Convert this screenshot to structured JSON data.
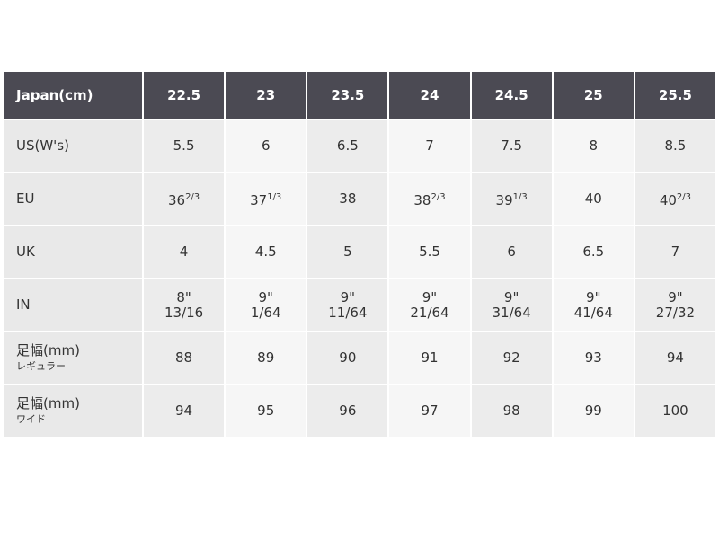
{
  "table": {
    "header": [
      "Japan(cm)",
      "22.5",
      "23",
      "23.5",
      "24",
      "24.5",
      "25",
      "25.5"
    ],
    "rows": [
      {
        "label": {
          "text": "US(W's)"
        },
        "cells": [
          {
            "text": "5.5"
          },
          {
            "text": "6"
          },
          {
            "text": "6.5"
          },
          {
            "text": "7"
          },
          {
            "text": "7.5"
          },
          {
            "text": "8"
          },
          {
            "text": "8.5"
          }
        ]
      },
      {
        "label": {
          "text": "EU"
        },
        "cells": [
          {
            "text": "36",
            "sup": "2/3"
          },
          {
            "text": "37",
            "sup": "1/3"
          },
          {
            "text": "38"
          },
          {
            "text": "38",
            "sup": "2/3"
          },
          {
            "text": "39",
            "sup": "1/3"
          },
          {
            "text": "40"
          },
          {
            "text": "40",
            "sup": "2/3"
          }
        ]
      },
      {
        "label": {
          "text": "UK"
        },
        "cells": [
          {
            "text": "4"
          },
          {
            "text": "4.5"
          },
          {
            "text": "5"
          },
          {
            "text": "5.5"
          },
          {
            "text": "6"
          },
          {
            "text": "6.5"
          },
          {
            "text": "7"
          }
        ]
      },
      {
        "label": {
          "text": "IN"
        },
        "cells": [
          {
            "lines": [
              "8\"",
              "13/16"
            ]
          },
          {
            "lines": [
              "9\"",
              "1/64"
            ]
          },
          {
            "lines": [
              "9\"",
              "11/64"
            ]
          },
          {
            "lines": [
              "9\"",
              "21/64"
            ]
          },
          {
            "lines": [
              "9\"",
              "31/64"
            ]
          },
          {
            "lines": [
              "9\"",
              "41/64"
            ]
          },
          {
            "lines": [
              "9\"",
              "27/32"
            ]
          }
        ]
      },
      {
        "label": {
          "lines": [
            "足幅(mm)",
            "レギュラー"
          ]
        },
        "cells": [
          {
            "text": "88"
          },
          {
            "text": "89"
          },
          {
            "text": "90"
          },
          {
            "text": "91"
          },
          {
            "text": "92"
          },
          {
            "text": "93"
          },
          {
            "text": "94"
          }
        ]
      },
      {
        "label": {
          "lines": [
            "足幅(mm)",
            "ワイド"
          ]
        },
        "cells": [
          {
            "text": "94"
          },
          {
            "text": "95"
          },
          {
            "text": "96"
          },
          {
            "text": "97"
          },
          {
            "text": "98"
          },
          {
            "text": "99"
          },
          {
            "text": "100"
          }
        ]
      }
    ]
  }
}
